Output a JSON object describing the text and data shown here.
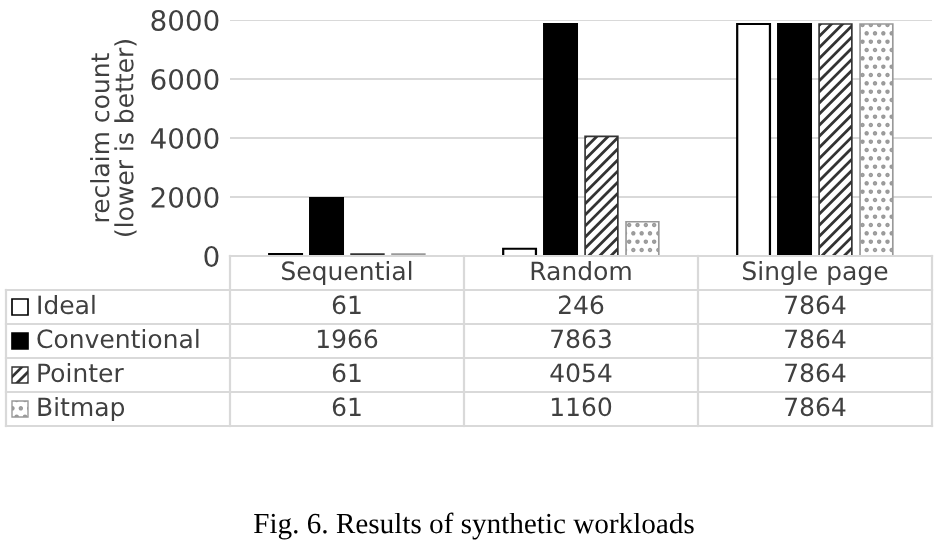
{
  "chart_data": {
    "type": "bar",
    "ylabel": "reclaim count\n(lower is better)",
    "categories": [
      "Sequential",
      "Random",
      "Single page"
    ],
    "series": [
      {
        "name": "Ideal",
        "color": "#ffffff",
        "values": [
          61,
          246,
          7864
        ]
      },
      {
        "name": "Conventional",
        "color": "#000000",
        "values": [
          1966,
          7863,
          7864
        ]
      },
      {
        "name": "Pointer",
        "color": "#333333",
        "values": [
          61,
          4054,
          7864
        ]
      },
      {
        "name": "Bitmap",
        "color": "#999999",
        "values": [
          61,
          1160,
          7864
        ]
      }
    ],
    "ylim": [
      0,
      8000
    ],
    "yticks": [
      0,
      2000,
      4000,
      6000,
      8000
    ],
    "grid": "y",
    "legend": "left",
    "data_labels": true,
    "annotations": [
      "Fig. 6. Results of synthetic workloads"
    ]
  }
}
